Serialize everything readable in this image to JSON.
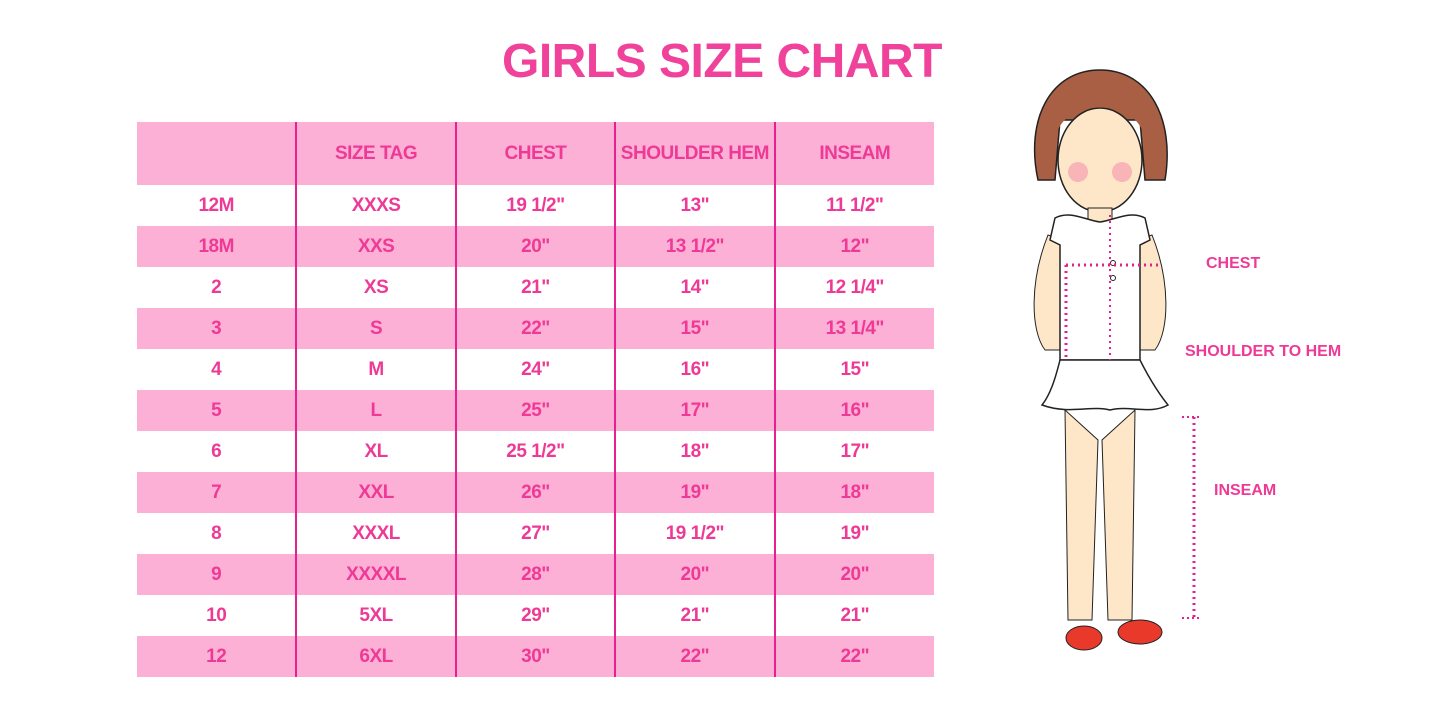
{
  "title": "GIRLS SIZE CHART",
  "table": {
    "headers": [
      "",
      "SIZE TAG",
      "CHEST",
      "SHOULDER HEM",
      "INSEAM"
    ],
    "rows": [
      [
        "12M",
        "XXXS",
        "19 1/2\"",
        "13\"",
        "11 1/2\""
      ],
      [
        "18M",
        "XXS",
        "20\"",
        "13 1/2\"",
        "12\""
      ],
      [
        "2",
        "XS",
        "21\"",
        "14\"",
        "12 1/4\""
      ],
      [
        "3",
        "S",
        "22\"",
        "15\"",
        "13 1/4\""
      ],
      [
        "4",
        "M",
        "24\"",
        "16\"",
        "15\""
      ],
      [
        "5",
        "L",
        "25\"",
        "17\"",
        "16\""
      ],
      [
        "6",
        "XL",
        "25 1/2\"",
        "18\"",
        "17\""
      ],
      [
        "7",
        "XXL",
        "26\"",
        "19\"",
        "18\""
      ],
      [
        "8",
        "XXXL",
        "27\"",
        "19 1/2\"",
        "19\""
      ],
      [
        "9",
        "XXXXL",
        "28\"",
        "20\"",
        "20\""
      ],
      [
        "10",
        "5XL",
        "29\"",
        "21\"",
        "21\""
      ],
      [
        "12",
        "6XL",
        "30\"",
        "22\"",
        "22\""
      ]
    ]
  },
  "illustration": {
    "labels": {
      "chest": "CHEST",
      "shoulder_to_hem": "SHOULDER TO HEM",
      "inseam": "INSEAM"
    }
  },
  "colors": {
    "accent": "#ee3a96",
    "stripe": "#fdb0d5",
    "divider": "#e6208c"
  }
}
